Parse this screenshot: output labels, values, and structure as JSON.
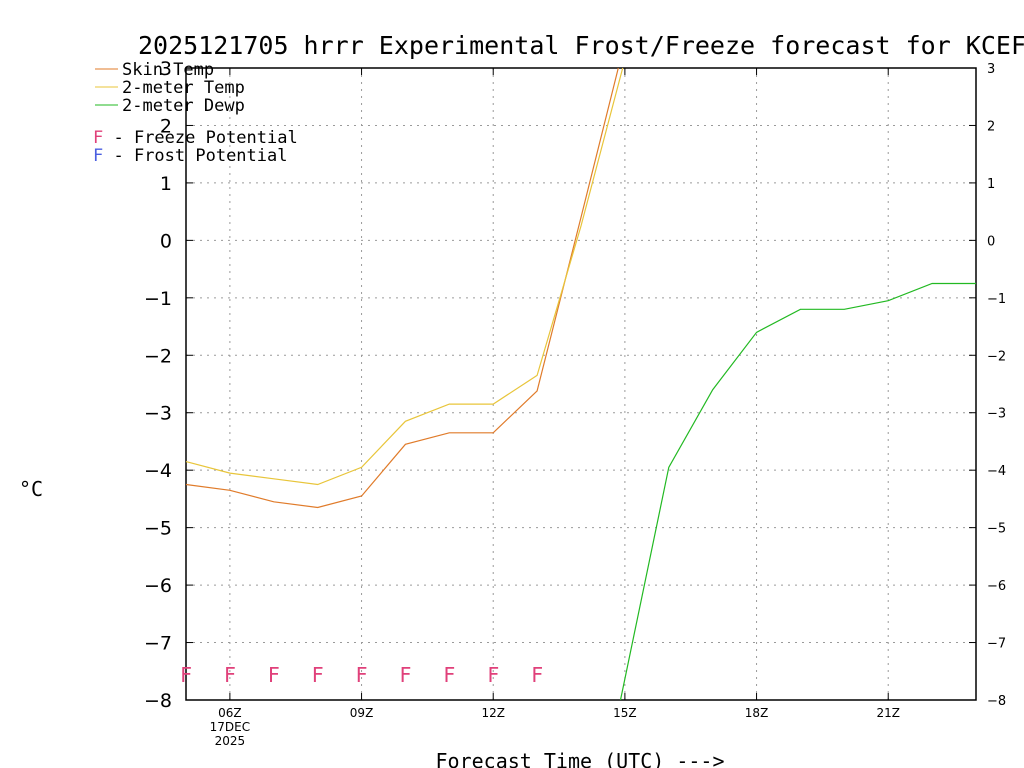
{
  "chart_data": {
    "type": "line",
    "title": "2025121705 hrrr Experimental Frost/Freeze forecast for KCEF",
    "ylabel": "°C",
    "xlabel": "Forecast Time (UTC) --->",
    "ylim": [
      -8,
      3
    ],
    "xlim": [
      5,
      23
    ],
    "yticks": [
      -8,
      -7,
      -6,
      -5,
      -4,
      -3,
      -2,
      -1,
      0,
      1,
      2,
      3
    ],
    "xticks": [
      {
        "x": 6,
        "label": "06Z",
        "sub": [
          "17DEC",
          "2025"
        ]
      },
      {
        "x": 9,
        "label": "09Z"
      },
      {
        "x": 12,
        "label": "12Z"
      },
      {
        "x": 15,
        "label": "15Z"
      },
      {
        "x": 18,
        "label": "18Z"
      },
      {
        "x": 21,
        "label": "21Z"
      }
    ],
    "series": [
      {
        "name": "Skin Temp",
        "color": "#e07b2a",
        "x": [
          5,
          6,
          7,
          8,
          9,
          10,
          11,
          12,
          13,
          14,
          14.85
        ],
        "values": [
          -4.25,
          -4.35,
          -4.55,
          -4.65,
          -4.45,
          -3.55,
          -3.35,
          -3.35,
          -2.62,
          0.4,
          3.0
        ]
      },
      {
        "name": "2-meter Temp",
        "color": "#e8c53a",
        "x": [
          5,
          6,
          7,
          8,
          9,
          10,
          11,
          12,
          13,
          14,
          14.95
        ],
        "values": [
          -3.85,
          -4.05,
          -4.15,
          -4.25,
          -3.95,
          -3.15,
          -2.85,
          -2.85,
          -2.35,
          0.25,
          3.0
        ]
      },
      {
        "name": "2-meter Dewp",
        "color": "#22b922",
        "x": [
          14.9,
          16,
          17,
          18,
          19,
          20,
          21,
          22,
          23
        ],
        "values": [
          -8.0,
          -3.95,
          -2.6,
          -1.6,
          -1.2,
          -1.2,
          -1.05,
          -0.75,
          -0.75
        ]
      }
    ],
    "flags": {
      "freeze": {
        "label": "F - Freeze Potential",
        "letter": "F",
        "color": "#e0407a",
        "x": [
          5,
          6,
          7,
          8,
          9,
          10,
          11,
          12,
          13
        ],
        "y": -7.55
      },
      "frost": {
        "label": "F - Frost Potential",
        "letter": "F",
        "color": "#4a5ee0",
        "x": []
      }
    }
  }
}
